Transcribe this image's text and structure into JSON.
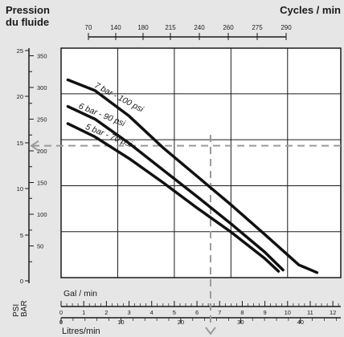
{
  "chart_data": {
    "type": "line",
    "title_left": [
      "Pression",
      "du fluide"
    ],
    "title_right": "Cycles / min",
    "cycles_ticks": [
      "70",
      "140",
      "180",
      "215",
      "240",
      "260",
      "275",
      "290"
    ],
    "y_bar_ticks": [
      "0",
      "5",
      "10",
      "15",
      "20",
      "25"
    ],
    "y_psi_ticks": [
      "50",
      "100",
      "150",
      "200",
      "250",
      "300",
      "350"
    ],
    "y_psi_label": "PSI",
    "y_bar_label": "BAR",
    "x_gal_label": "Gal / min",
    "x_gal_ticks": [
      "0",
      "1",
      "2",
      "3",
      "4",
      "5",
      "6",
      "7",
      "8",
      "9",
      "10",
      "11",
      "12"
    ],
    "x_lpm_label": "Litres/min",
    "x_lpm_ticks": [
      "0",
      "10",
      "20",
      "30",
      "40"
    ],
    "x_gal_range": [
      0,
      12.35
    ],
    "y_psi_range": [
      0,
      362
    ],
    "grid": true,
    "series": [
      {
        "name": "7 bar - 100 psi",
        "points": [
          [
            0.3,
            312
          ],
          [
            1.5,
            295
          ],
          [
            3,
            255
          ],
          [
            4.5,
            205
          ],
          [
            6,
            160
          ],
          [
            7.5,
            115
          ],
          [
            9,
            68
          ],
          [
            10.5,
            20
          ],
          [
            11.3,
            8
          ]
        ]
      },
      {
        "name": "6 bar - 90 psi",
        "points": [
          [
            0.3,
            270
          ],
          [
            1.5,
            250
          ],
          [
            3,
            212
          ],
          [
            4.5,
            170
          ],
          [
            6,
            128
          ],
          [
            7.5,
            85
          ],
          [
            9,
            40
          ],
          [
            9.8,
            12
          ]
        ]
      },
      {
        "name": "5 bar - 70 psi",
        "points": [
          [
            0.3,
            243
          ],
          [
            1.5,
            222
          ],
          [
            3,
            188
          ],
          [
            4.5,
            150
          ],
          [
            6,
            110
          ],
          [
            7.5,
            72
          ],
          [
            9,
            30
          ],
          [
            9.6,
            10
          ]
        ]
      }
    ],
    "reference": {
      "x_gal": 6.6,
      "y_psi": 208
    }
  }
}
